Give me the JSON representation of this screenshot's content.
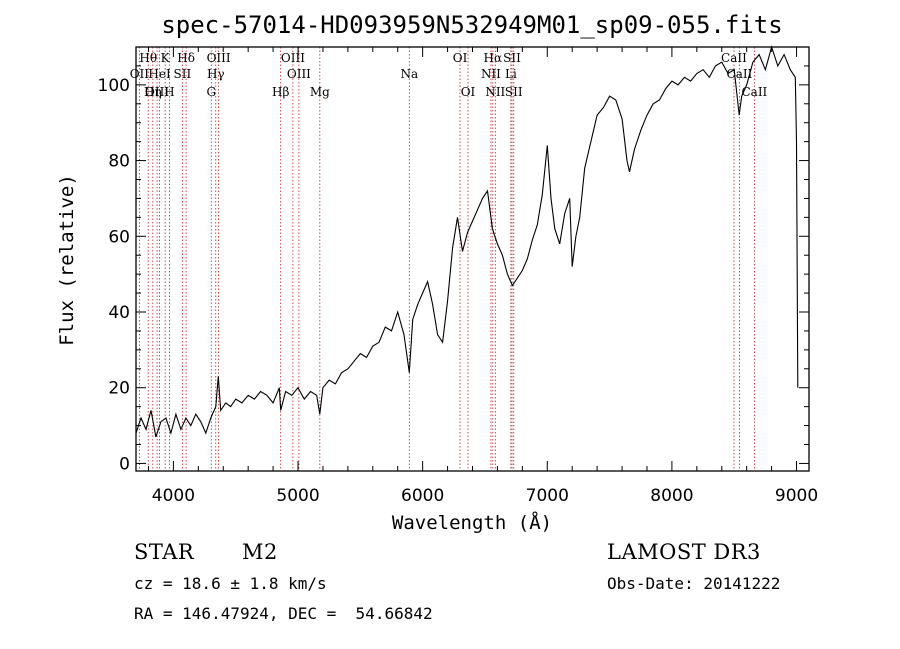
{
  "chart_data": {
    "type": "line",
    "title": "spec-57014-HD093959N532949M01_sp09-055.fits",
    "xlabel": "Wavelength (Å)",
    "ylabel": "Flux (relative)",
    "xlim": [
      3700,
      9100
    ],
    "ylim": [
      -2,
      110
    ],
    "x_ticks": [
      4000,
      5000,
      6000,
      7000,
      8000,
      9000
    ],
    "y_ticks": [
      0,
      20,
      40,
      60,
      80,
      100
    ],
    "x_tick_labels": [
      "4000",
      "5000",
      "6000",
      "7000",
      "8000",
      "9000"
    ],
    "y_tick_labels": [
      "0",
      "20",
      "40",
      "60",
      "80",
      "100"
    ],
    "series": [
      {
        "name": "flux",
        "x": [
          3700,
          3740,
          3780,
          3820,
          3860,
          3900,
          3940,
          3980,
          4020,
          4060,
          4100,
          4140,
          4180,
          4220,
          4260,
          4300,
          4340,
          4360,
          4380,
          4420,
          4460,
          4500,
          4550,
          4600,
          4650,
          4700,
          4750,
          4800,
          4850,
          4861,
          4900,
          4950,
          5000,
          5050,
          5100,
          5150,
          5175,
          5200,
          5250,
          5300,
          5350,
          5400,
          5450,
          5500,
          5550,
          5600,
          5650,
          5700,
          5750,
          5800,
          5850,
          5893,
          5920,
          5960,
          6000,
          6040,
          6080,
          6120,
          6160,
          6200,
          6240,
          6280,
          6320,
          6360,
          6400,
          6440,
          6480,
          6520,
          6560,
          6600,
          6640,
          6680,
          6720,
          6760,
          6800,
          6840,
          6880,
          6920,
          6960,
          7000,
          7030,
          7060,
          7100,
          7140,
          7180,
          7200,
          7230,
          7260,
          7300,
          7350,
          7400,
          7450,
          7500,
          7550,
          7600,
          7640,
          7660,
          7700,
          7750,
          7800,
          7850,
          7900,
          7950,
          8000,
          8050,
          8100,
          8150,
          8200,
          8250,
          8300,
          8350,
          8400,
          8450,
          8500,
          8540,
          8560,
          8600,
          8650,
          8700,
          8750,
          8800,
          8850,
          8900,
          8950,
          8990,
          9000,
          9010
        ],
        "y": [
          8,
          12,
          9,
          14,
          7,
          11,
          12,
          8,
          13,
          9,
          12,
          10,
          13,
          11,
          8,
          12,
          15,
          23,
          14,
          16,
          15,
          17,
          16,
          18,
          17,
          19,
          18,
          16,
          20,
          14,
          19,
          18,
          20,
          17,
          19,
          18,
          13,
          20,
          22,
          21,
          24,
          25,
          27,
          29,
          28,
          31,
          32,
          36,
          35,
          40,
          34,
          24,
          38,
          42,
          45,
          48,
          42,
          34,
          32,
          43,
          57,
          65,
          56,
          61,
          64,
          67,
          70,
          72,
          62,
          58,
          55,
          50,
          47,
          49,
          51,
          54,
          59,
          63,
          71,
          84,
          70,
          62,
          58,
          66,
          70,
          52,
          60,
          65,
          78,
          85,
          92,
          94,
          97,
          96,
          91,
          80,
          77,
          83,
          88,
          92,
          95,
          96,
          99,
          101,
          100,
          102,
          101,
          103,
          104,
          102,
          105,
          106,
          103,
          104,
          92,
          97,
          100,
          106,
          108,
          104,
          110,
          105,
          108,
          104,
          102,
          85,
          20
        ]
      }
    ],
    "spectral_lines": [
      {
        "label": "Hθ",
        "wavelength": 3798,
        "row": 1
      },
      {
        "label": "K",
        "wavelength": 3934,
        "row": 1
      },
      {
        "label": "Hδ",
        "wavelength": 4102,
        "row": 1
      },
      {
        "label": "OIII",
        "wavelength": 4363,
        "row": 1
      },
      {
        "label": "OIII",
        "wavelength": 4959,
        "row": 1
      },
      {
        "label": "OI",
        "wavelength": 6300,
        "row": 1
      },
      {
        "label": "Hα",
        "wavelength": 6563,
        "row": 1
      },
      {
        "label": "SII",
        "wavelength": 6717,
        "row": 1
      },
      {
        "label": "CaII",
        "wavelength": 8498,
        "row": 1
      },
      {
        "label": "OII",
        "wavelength": 3727,
        "row": 2
      },
      {
        "label": "HeI",
        "wavelength": 3889,
        "row": 2
      },
      {
        "label": "SII",
        "wavelength": 4072,
        "row": 2
      },
      {
        "label": "Hγ",
        "wavelength": 4340,
        "row": 2
      },
      {
        "label": "OIII",
        "wavelength": 5007,
        "row": 2
      },
      {
        "label": "Na",
        "wavelength": 5893,
        "row": 2
      },
      {
        "label": "NII",
        "wavelength": 6548,
        "row": 2
      },
      {
        "label": "Li",
        "wavelength": 6708,
        "row": 2
      },
      {
        "label": "CaII",
        "wavelength": 8542,
        "row": 2
      },
      {
        "label": "OIII",
        "wavelength": 3869,
        "row": 3
      },
      {
        "label": "Hη",
        "wavelength": 3835,
        "row": 3
      },
      {
        "label": "H",
        "wavelength": 3968,
        "row": 3
      },
      {
        "label": "G",
        "wavelength": 4304,
        "row": 3
      },
      {
        "label": "Hβ",
        "wavelength": 4861,
        "row": 3
      },
      {
        "label": "Mg",
        "wavelength": 5175,
        "row": 3
      },
      {
        "label": "OI",
        "wavelength": 6364,
        "row": 3
      },
      {
        "label": "NII",
        "wavelength": 6583,
        "row": 3
      },
      {
        "label": "SII",
        "wavelength": 6731,
        "row": 3
      },
      {
        "label": "CaII",
        "wavelength": 8662,
        "row": 3
      }
    ]
  },
  "info": {
    "class": "STAR",
    "subclass": "M2",
    "survey": "LAMOST DR3",
    "cz": "cz = 18.6 ± 1.8 km/s",
    "obs_date": "Obs-Date: 20141222",
    "coords": "RA = 146.47924, DEC =  54.66842"
  },
  "colors": {
    "spectrum": "#000000",
    "line_marker": "#b22222",
    "axes": "#000000"
  }
}
